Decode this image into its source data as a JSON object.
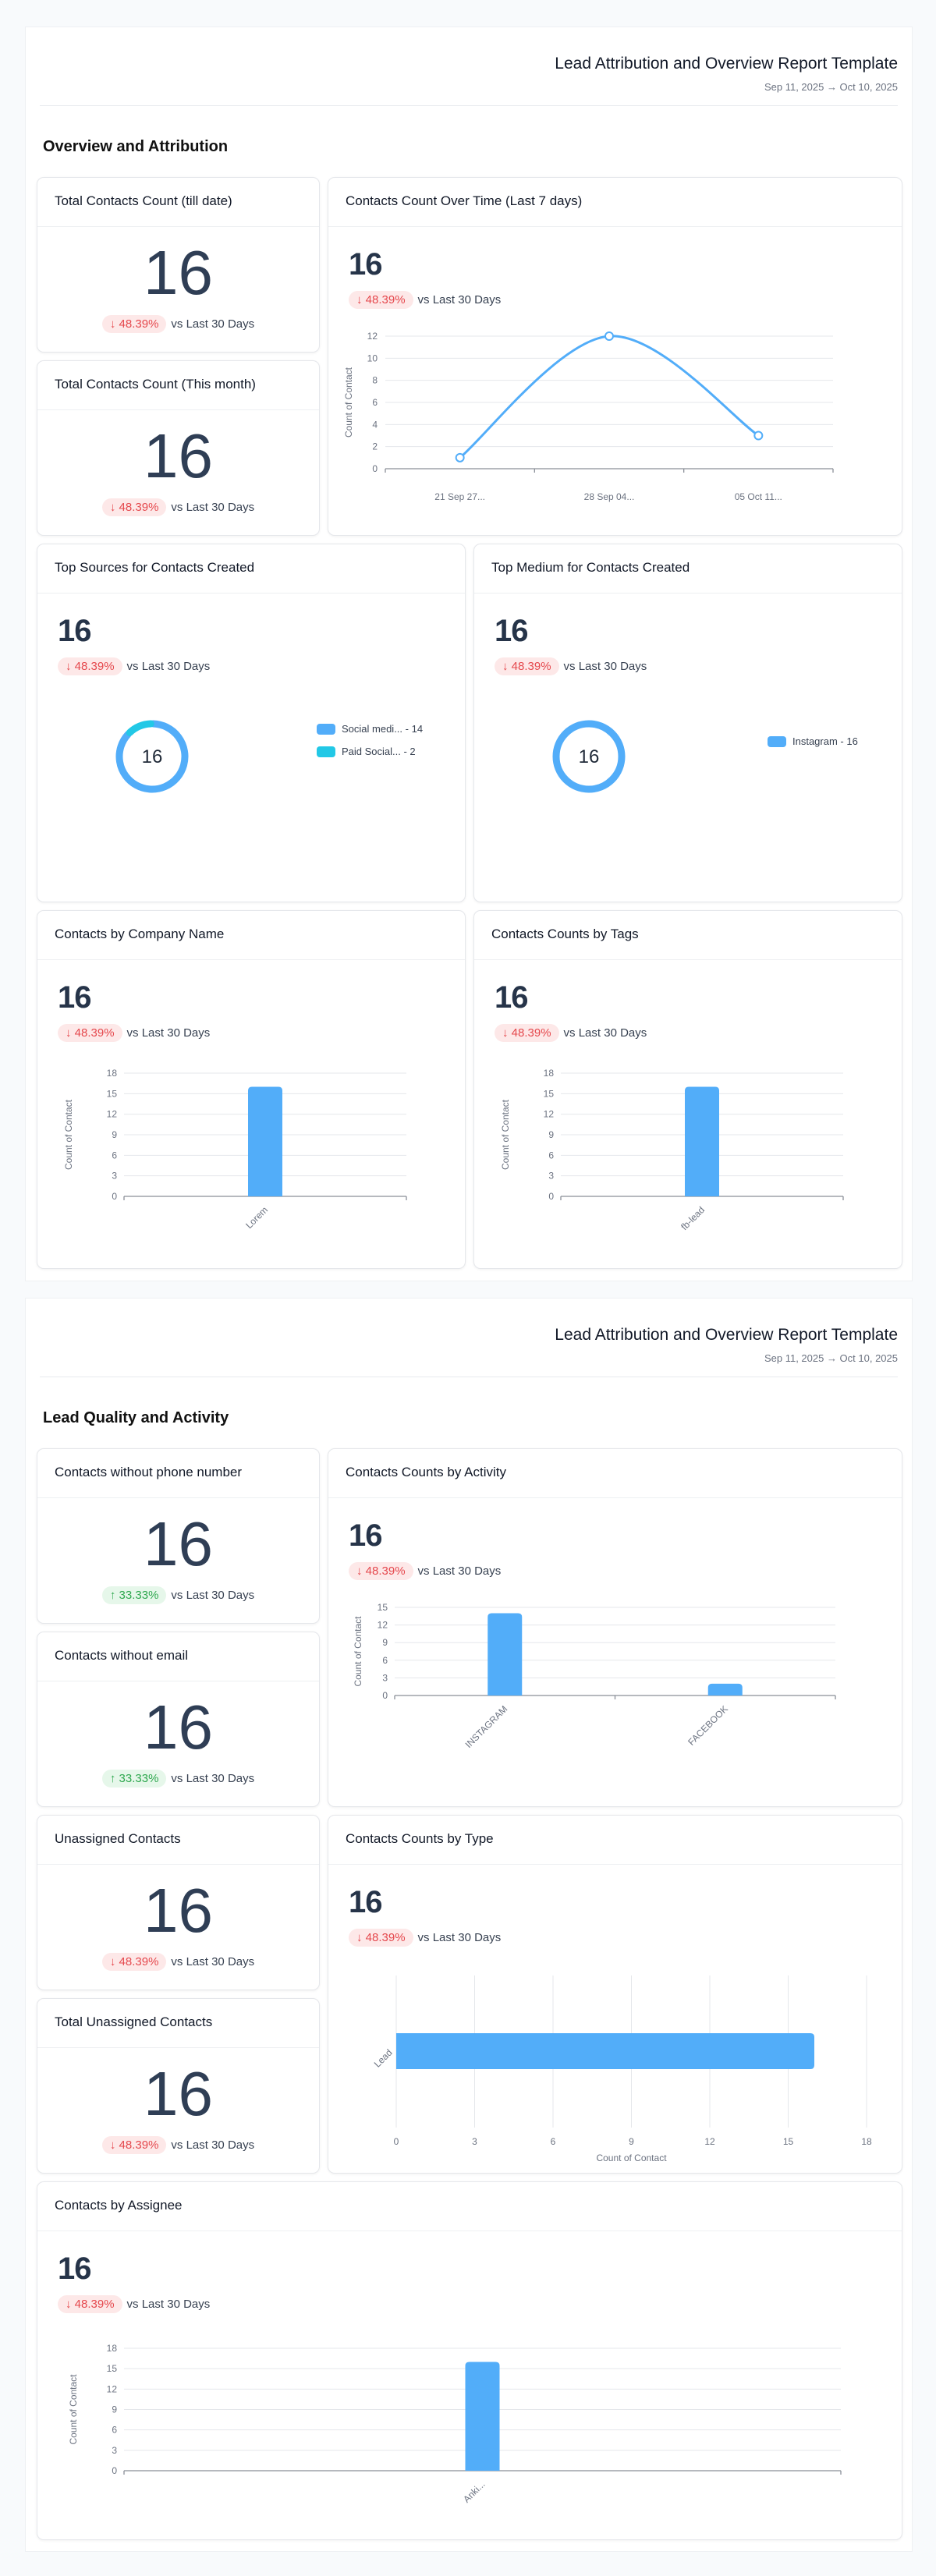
{
  "report": {
    "title": "Lead Attribution and Overview Report Template",
    "date_range": "Sep 11, 2025 → Oct 10, 2025"
  },
  "colors": {
    "accent": "#52adf9",
    "accent2": "#22c8e6",
    "down": "#e5484d",
    "up": "#2fa84f"
  },
  "pages": [
    {
      "section_title": "Overview and Attribution",
      "cards": {
        "total_till_date": {
          "title": "Total Contacts Count (till date)",
          "value": "16",
          "delta": "↓ 48.39%",
          "delta_dir": "down",
          "compare": "vs Last 30 Days"
        },
        "total_this_month": {
          "title": "Total Contacts Count (This month)",
          "value": "16",
          "delta": "↓ 48.39%",
          "delta_dir": "down",
          "compare": "vs Last 30 Days"
        },
        "over_time": {
          "title": "Contacts Count Over Time (Last 7 days)",
          "value": "16",
          "delta": "↓ 48.39%",
          "delta_dir": "down",
          "compare": "vs Last 30 Days"
        },
        "top_sources": {
          "title": "Top Sources for Contacts Created",
          "value": "16",
          "delta": "↓ 48.39%",
          "delta_dir": "down",
          "compare": "vs Last 30 Days",
          "donut_center": "16"
        },
        "top_medium": {
          "title": "Top Medium for Contacts Created",
          "value": "16",
          "delta": "↓ 48.39%",
          "delta_dir": "down",
          "compare": "vs Last 30 Days",
          "donut_center": "16"
        },
        "by_company": {
          "title": "Contacts by Company Name",
          "value": "16",
          "delta": "↓ 48.39%",
          "delta_dir": "down",
          "compare": "vs Last 30 Days"
        },
        "by_tags": {
          "title": "Contacts Counts by Tags",
          "value": "16",
          "delta": "↓ 48.39%",
          "delta_dir": "down",
          "compare": "vs Last 30 Days"
        }
      }
    },
    {
      "section_title": "Lead Quality and Activity",
      "cards": {
        "no_phone": {
          "title": "Contacts without phone number",
          "value": "16",
          "delta": "↑ 33.33%",
          "delta_dir": "up",
          "compare": "vs Last 30 Days"
        },
        "no_email": {
          "title": "Contacts without email",
          "value": "16",
          "delta": "↑ 33.33%",
          "delta_dir": "up",
          "compare": "vs Last 30 Days"
        },
        "unassigned": {
          "title": "Unassigned Contacts",
          "value": "16",
          "delta": "↓ 48.39%",
          "delta_dir": "down",
          "compare": "vs Last 30 Days"
        },
        "total_unassigned": {
          "title": "Total Unassigned Contacts",
          "value": "16",
          "delta": "↓ 48.39%",
          "delta_dir": "down",
          "compare": "vs Last 30 Days"
        },
        "by_activity": {
          "title": "Contacts Counts by Activity",
          "value": "16",
          "delta": "↓ 48.39%",
          "delta_dir": "down",
          "compare": "vs Last 30 Days"
        },
        "by_type": {
          "title": "Contacts Counts by Type",
          "value": "16",
          "delta": "↓ 48.39%",
          "delta_dir": "down",
          "compare": "vs Last 30 Days"
        },
        "by_assignee": {
          "title": "Contacts by Assignee",
          "value": "16",
          "delta": "↓ 48.39%",
          "delta_dir": "down",
          "compare": "vs Last 30 Days"
        }
      }
    }
  ],
  "chart_data": [
    {
      "id": "over_time",
      "type": "line",
      "title": "Contacts Count Over Time (Last 7 days)",
      "ylabel": "Count of Contact",
      "xlabel": "",
      "categories": [
        "21 Sep   27...",
        "28 Sep   04...",
        "05 Oct   11..."
      ],
      "values": [
        1,
        12,
        3
      ],
      "ylim": [
        0,
        12
      ],
      "yticks": [
        "0",
        "2",
        "4",
        "6",
        "8",
        "10",
        "12"
      ],
      "grid": true
    },
    {
      "id": "top_sources",
      "type": "pie",
      "title": "Top Sources for Contacts Created",
      "donut": true,
      "slices": [
        {
          "label": "Social medi... - 14",
          "value": 14,
          "color": "#52adf9"
        },
        {
          "label": "Paid Social... - 2",
          "value": 2,
          "color": "#22c8e6"
        }
      ],
      "legend": "right"
    },
    {
      "id": "top_medium",
      "type": "pie",
      "title": "Top Medium for Contacts Created",
      "donut": true,
      "slices": [
        {
          "label": "Instagram - 16",
          "value": 16,
          "color": "#52adf9"
        }
      ],
      "legend": "right"
    },
    {
      "id": "by_company",
      "type": "bar",
      "title": "Contacts by Company Name",
      "ylabel": "Count of Contact",
      "categories": [
        "Lorem"
      ],
      "values": [
        16
      ],
      "ylim": [
        0,
        18
      ],
      "yticks": [
        "0",
        "3",
        "6",
        "9",
        "12",
        "15",
        "18"
      ],
      "grid": true
    },
    {
      "id": "by_tags",
      "type": "bar",
      "title": "Contacts Counts by Tags",
      "ylabel": "Count of Contact",
      "categories": [
        "fb-lead"
      ],
      "values": [
        16
      ],
      "ylim": [
        0,
        18
      ],
      "yticks": [
        "0",
        "3",
        "6",
        "9",
        "12",
        "15",
        "18"
      ],
      "grid": true
    },
    {
      "id": "by_activity",
      "type": "bar",
      "title": "Contacts Counts by Activity",
      "ylabel": "Count of Contact",
      "categories": [
        "INSTAGRAM",
        "FACEBOOK"
      ],
      "values": [
        14,
        2
      ],
      "ylim": [
        0,
        15
      ],
      "yticks": [
        "0",
        "3",
        "6",
        "9",
        "12",
        "15"
      ],
      "grid": true
    },
    {
      "id": "by_type",
      "type": "bar",
      "orientation": "horizontal",
      "title": "Contacts Counts by Type",
      "xlabel": "Count of Contact",
      "categories": [
        "Lead"
      ],
      "values": [
        16
      ],
      "xlim": [
        0,
        18
      ],
      "xticks": [
        "0",
        "3",
        "6",
        "9",
        "12",
        "15",
        "18"
      ],
      "grid": true
    },
    {
      "id": "by_assignee",
      "type": "bar",
      "title": "Contacts by Assignee",
      "ylabel": "Count of Contact",
      "categories": [
        "Anki..."
      ],
      "values": [
        16
      ],
      "ylim": [
        0,
        18
      ],
      "yticks": [
        "0",
        "3",
        "6",
        "9",
        "12",
        "15",
        "18"
      ],
      "grid": true
    }
  ]
}
